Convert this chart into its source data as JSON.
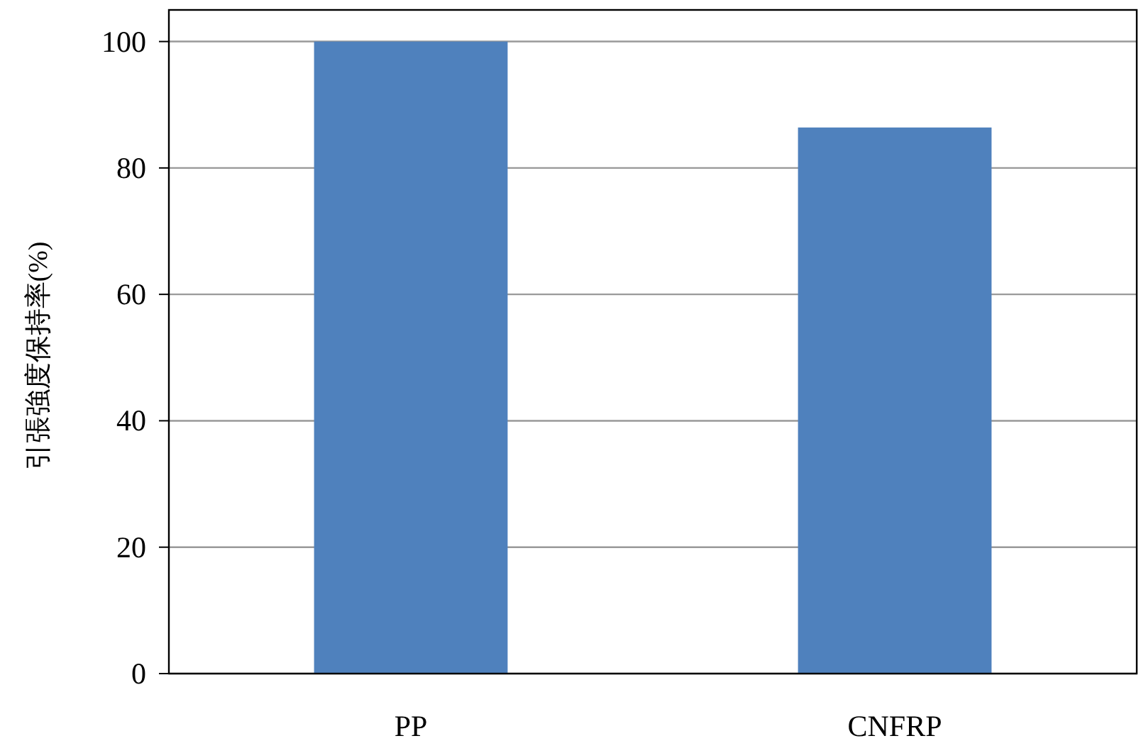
{
  "chart_data": {
    "type": "bar",
    "ylabel": "引張強度保持率(%)",
    "categories": [
      "PP",
      "CNFRP"
    ],
    "values": [
      100,
      86.4
    ],
    "color": "#4f81bd",
    "ylim": [
      0,
      105
    ],
    "yticks": [
      0,
      20,
      40,
      60,
      80,
      100
    ],
    "grid": "y"
  }
}
